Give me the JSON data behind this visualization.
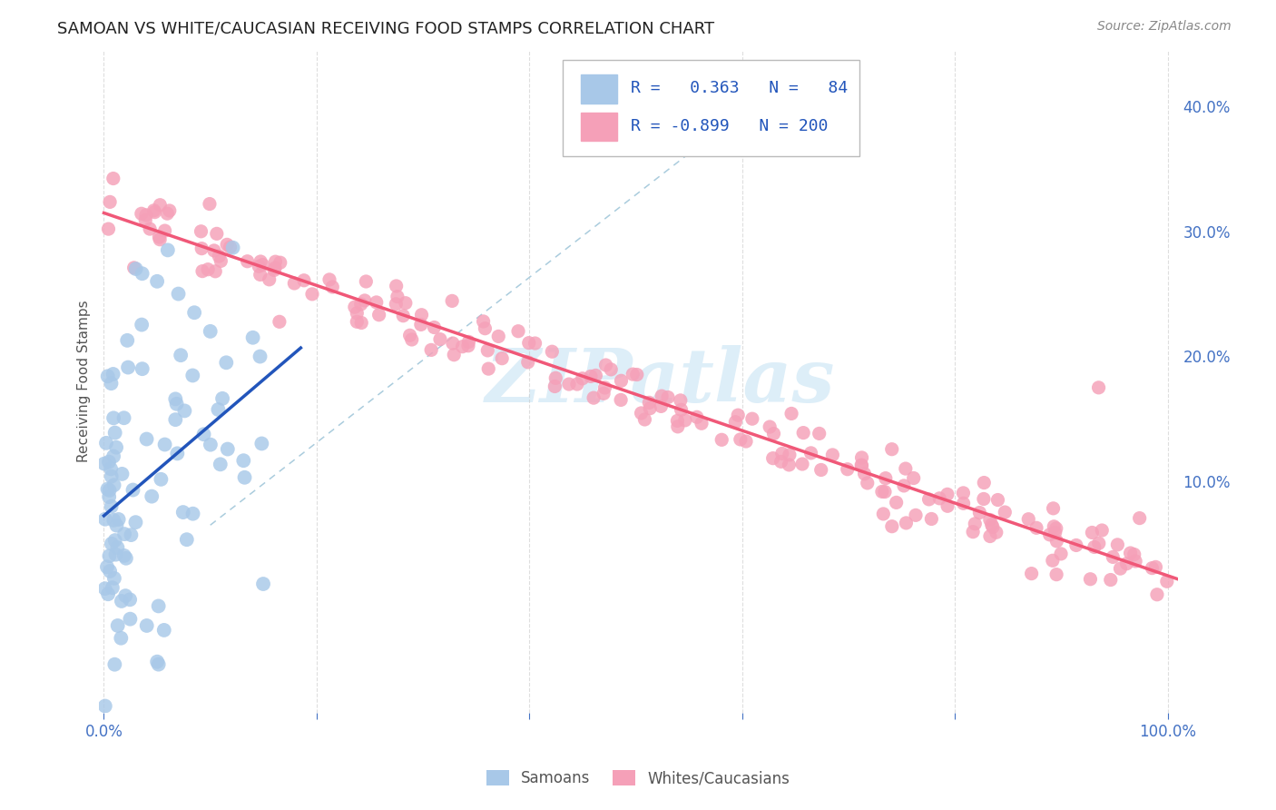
{
  "title": "SAMOAN VS WHITE/CAUCASIAN RECEIVING FOOD STAMPS CORRELATION CHART",
  "source": "Source: ZipAtlas.com",
  "ylabel": "Receiving Food Stamps",
  "legend_label1": "Samoans",
  "legend_label2": "Whites/Caucasians",
  "r1": 0.363,
  "n1": 84,
  "r2": -0.899,
  "n2": 200,
  "color_samoan": "#a8c8e8",
  "color_white": "#f5a0b8",
  "line_samoan": "#2255bb",
  "line_white": "#f05878",
  "diag_color": "#aaccdd",
  "watermark_color": "#ddeef8",
  "legend_text_color": "#2255bb",
  "tick_color": "#4472C4",
  "ytick_vals": [
    0.1,
    0.2,
    0.3,
    0.4
  ],
  "ytick_labels": [
    "10.0%",
    "20.0%",
    "30.0%",
    "40.0%"
  ],
  "xlim": [
    -0.005,
    1.01
  ],
  "ylim": [
    -0.085,
    0.445
  ]
}
